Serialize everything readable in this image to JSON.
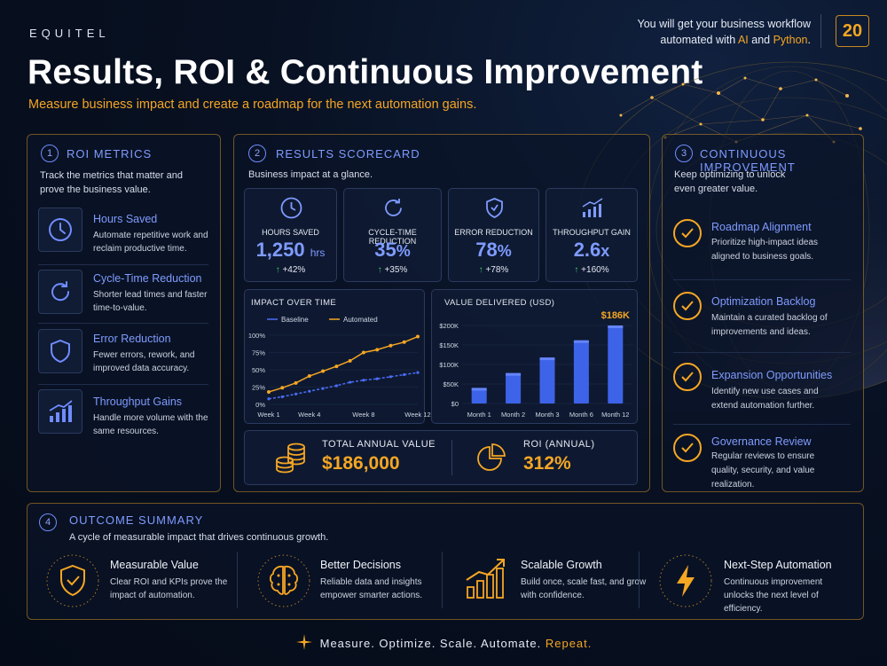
{
  "header": {
    "brand": "EQUITEL",
    "title": "Results, ROI & Continuous Improvement",
    "subtitle": "Measure business impact and create a roadmap for the next automation gains.",
    "tagline_line1": "You will get your business workflow",
    "tagline_pre": "automated with ",
    "tagline_ai": "AI",
    "tagline_and": " and ",
    "tagline_python": "Python",
    "tagline_end": ".",
    "page_number": "20"
  },
  "roi": {
    "number": "1",
    "title": "ROI METRICS",
    "description": "Track the metrics that matter and prove the business value.",
    "items": [
      {
        "title": "Hours Saved",
        "description": "Automate repetitive work and reclaim productive time.",
        "icon": "clock-icon"
      },
      {
        "title": "Cycle-Time Reduction",
        "description": "Shorter lead times and faster time-to-value.",
        "icon": "refresh-icon"
      },
      {
        "title": "Error Reduction",
        "description": "Fewer errors, rework, and improved data accuracy.",
        "icon": "shield-icon"
      },
      {
        "title": "Throughput Gains",
        "description": "Handle more volume with the same resources.",
        "icon": "growth-chart-icon"
      }
    ]
  },
  "scorecard": {
    "number": "2",
    "title": "RESULTS SCORECARD",
    "description": "Business impact at a glance.",
    "kpis": [
      {
        "label": "HOURS SAVED",
        "value": "1,250",
        "unit": "hrs",
        "change": "+42%",
        "icon": "clock-icon"
      },
      {
        "label": "CYCLE-TIME REDUCTION",
        "value": "35",
        "unit": "%",
        "change": "+35%",
        "icon": "refresh-icon"
      },
      {
        "label": "ERROR REDUCTION",
        "value": "78",
        "unit": "%",
        "change": "+78%",
        "icon": "shield-check-icon"
      },
      {
        "label": "THROUGHPUT GAIN",
        "value": "2.6",
        "unit": "x",
        "change": "+160%",
        "icon": "bar-growth-icon"
      }
    ],
    "total_annual_label": "TOTAL ANNUAL VALUE",
    "total_annual_value": "$186,000",
    "roi_label": "ROI (ANNUAL)",
    "roi_value": "312%"
  },
  "chart_data": [
    {
      "type": "line",
      "title": "IMPACT OVER TIME",
      "categories": [
        "Week 1",
        "Week 4",
        "Week 8",
        "Week 12"
      ],
      "x": [
        1,
        2,
        3,
        4,
        5,
        6,
        7,
        8,
        9,
        10,
        11,
        12
      ],
      "y_ticks": [
        "0%",
        "25%",
        "50%",
        "75%",
        "100%"
      ],
      "ylim": [
        0,
        100
      ],
      "legend_position": "top",
      "series": [
        {
          "name": "Baseline",
          "color": "#4a6cf7",
          "dashed": true,
          "values": [
            8,
            11,
            15,
            19,
            23,
            27,
            32,
            35,
            37,
            40,
            43,
            46
          ]
        },
        {
          "name": "Automated",
          "color": "#f5a623",
          "dashed": false,
          "values": [
            18,
            24,
            31,
            41,
            48,
            55,
            63,
            75,
            79,
            85,
            90,
            98
          ]
        }
      ]
    },
    {
      "type": "bar",
      "title": "VALUE DELIVERED (USD)",
      "categories": [
        "Month 1",
        "Month 2",
        "Month 3",
        "Month 6",
        "Month 12"
      ],
      "values": [
        40,
        78,
        118,
        162,
        200
      ],
      "y_ticks": [
        "$0",
        "$50K",
        "$100K",
        "$150K",
        "$200K"
      ],
      "ylim": [
        0,
        200
      ],
      "value_units": "thousand USD",
      "annotation": "$186K",
      "color": "#3d63e8"
    }
  ],
  "improvement": {
    "number": "3",
    "title": "CONTINUOUS IMPROVEMENT",
    "description": "Keep optimizing to unlock even greater value.",
    "items": [
      {
        "title": "Roadmap Alignment",
        "description": "Prioritize high-impact ideas aligned to business goals."
      },
      {
        "title": "Optimization Backlog",
        "description": "Maintain a curated backlog of improvements and ideas."
      },
      {
        "title": "Expansion Opportunities",
        "description": "Identify new use cases and extend automation further."
      },
      {
        "title": "Governance Review",
        "description": "Regular reviews to ensure quality, security, and value realization."
      }
    ]
  },
  "outcome": {
    "number": "4",
    "title": "OUTCOME SUMMARY",
    "description": "A cycle of measurable impact that drives continuous growth.",
    "items": [
      {
        "title": "Measurable Value",
        "description": "Clear ROI and KPIs prove the impact of automation.",
        "icon": "shield-check-icon"
      },
      {
        "title": "Better Decisions",
        "description": "Reliable data and insights empower smarter actions.",
        "icon": "brain-icon"
      },
      {
        "title": "Scalable Growth",
        "description": "Build once, scale fast, and grow with confidence.",
        "icon": "growth-chart-icon"
      },
      {
        "title": "Next-Step Automation",
        "description": "Continuous improvement unlocks the next level of efficiency.",
        "icon": "lightning-icon"
      }
    ]
  },
  "footer": {
    "text": "Measure. Optimize. Scale. Automate.",
    "highlight": "Repeat."
  }
}
